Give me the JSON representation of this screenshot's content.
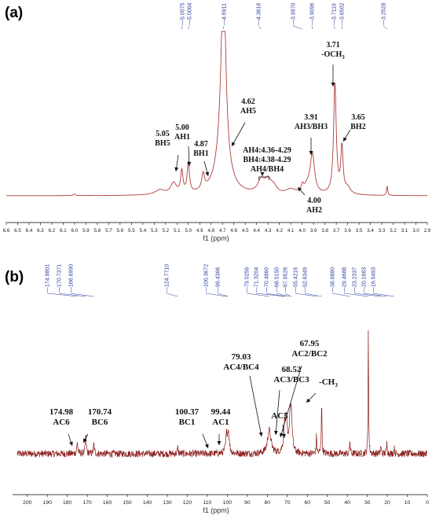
{
  "colors": {
    "spectrum": "#b23a3a",
    "spectrum_b": "#8b1a1a",
    "ppm_labels": "#2f3f9f",
    "axis": "#000000",
    "annotation": "#111111"
  },
  "chart_data": [
    {
      "panel_label": "(a)",
      "type": "line",
      "xlabel": "f1 (ppm)",
      "xlim": [
        6.6,
        2.9
      ],
      "x_ticks": [
        "6.6",
        "6.5",
        "6.4",
        "6.3",
        "6.2",
        "6.1",
        "6.0",
        "5.9",
        "5.8",
        "5.7",
        "5.6",
        "5.5",
        "5.4",
        "5.3",
        "5.2",
        "5.1",
        "5.0",
        "4.9",
        "4.8",
        "4.7",
        "4.6",
        "4.5",
        "4.4",
        "4.3",
        "4.2",
        "4.1",
        "4.0",
        "3.9",
        "3.8",
        "3.7",
        "3.6",
        "3.5",
        "3.4",
        "3.3",
        "3.2",
        "3.1",
        "3.0",
        "2.9"
      ],
      "peak_labels": [
        "5.0575",
        "5.0004",
        "4.6911",
        "4.3616",
        "3.9970",
        "3.9096",
        "3.7119",
        "3.6502",
        "3.2528"
      ],
      "annotations": [
        {
          "ppm": 5.05,
          "lines": [
            "5.05",
            "BH5"
          ]
        },
        {
          "ppm": 5.0,
          "lines": [
            "5.00",
            "AH1"
          ]
        },
        {
          "ppm": 4.87,
          "lines": [
            "4.87",
            "BH1"
          ]
        },
        {
          "ppm": 4.62,
          "lines": [
            "4.62",
            "AH5"
          ]
        },
        {
          "ppm": 4.33,
          "lines": [
            "AH4:4.36-4.29",
            "BH4:4.38-4.29",
            "AH4/BH4"
          ]
        },
        {
          "ppm": 3.91,
          "lines": [
            "3.91",
            "AH3/BH3"
          ]
        },
        {
          "ppm": 4.0,
          "lines": [
            "4.00",
            "AH2"
          ]
        },
        {
          "ppm": 3.71,
          "lines": [
            "3.71",
            "-OCH3"
          ]
        },
        {
          "ppm": 3.65,
          "lines": [
            "3.65",
            "BH2"
          ]
        }
      ]
    },
    {
      "panel_label": "(b)",
      "type": "line",
      "xlabel": "f1 (ppm)",
      "xlim": [
        205,
        0
      ],
      "x_ticks": [
        "200",
        "190",
        "180",
        "170",
        "160",
        "150",
        "140",
        "130",
        "120",
        "110",
        "100",
        "90",
        "80",
        "70",
        "60",
        "50",
        "40",
        "30",
        "20",
        "10",
        "0"
      ],
      "peak_labels": [
        "174.9801",
        "170.7371",
        "166.6990",
        "124.7710",
        "100.3672",
        "99.4366",
        "79.0256",
        "71.3204",
        "70.4860",
        "68.5150",
        "67.9526",
        "55.4216",
        "52.8349",
        "38.6880",
        "29.4688",
        "23.2337",
        "20.1683",
        "16.5493"
      ],
      "annotations": [
        {
          "ppm": 174.98,
          "lines": [
            "174.98",
            "AC6"
          ]
        },
        {
          "ppm": 170.74,
          "lines": [
            "170.74",
            "BC6"
          ]
        },
        {
          "ppm": 100.37,
          "lines": [
            "100.37",
            "BC1"
          ]
        },
        {
          "ppm": 99.44,
          "lines": [
            "99.44",
            "AC1"
          ]
        },
        {
          "ppm": 79.03,
          "lines": [
            "79.03",
            "AC4/BC4"
          ]
        },
        {
          "ppm": 68.52,
          "lines": [
            "68.52",
            "AC3/BC3"
          ]
        },
        {
          "ppm": 71.32,
          "lines": [
            "AC5"
          ]
        },
        {
          "ppm": 67.95,
          "lines": [
            "67.95",
            "AC2/BC2"
          ]
        },
        {
          "ppm": 52.83,
          "lines": [
            "-CH3"
          ]
        }
      ]
    }
  ]
}
